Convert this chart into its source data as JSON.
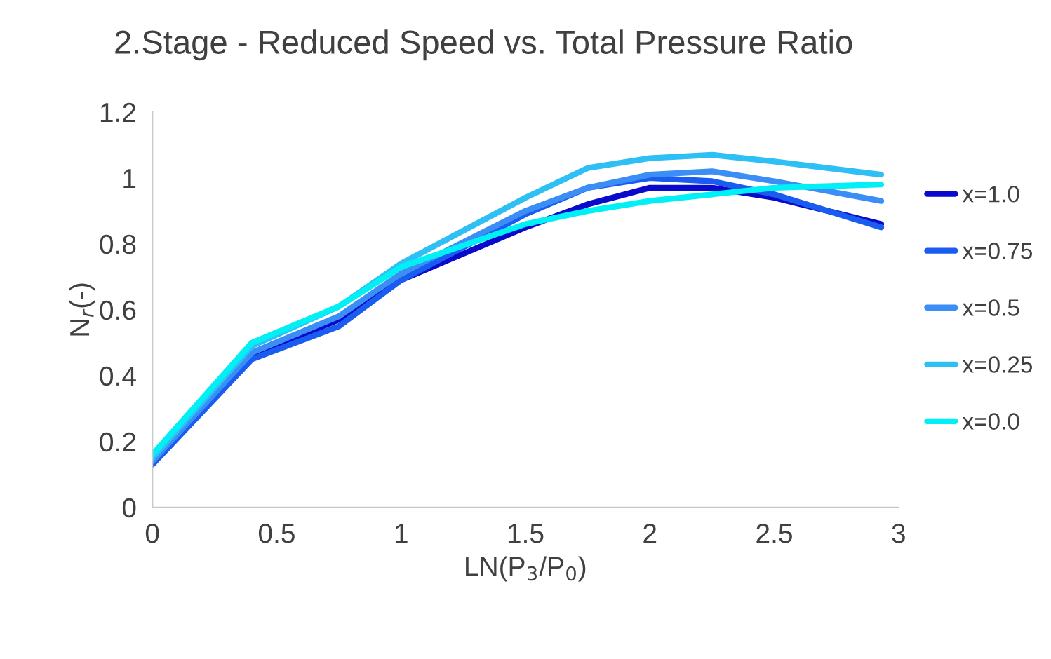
{
  "chart_data": {
    "type": "line",
    "title": "2.Stage - Reduced Speed vs. Total Pressure Ratio",
    "xlabel": "LN(P$_{3}$/P$_{0}$)",
    "ylabel": "N$_{r}$(-)",
    "x": [
      0,
      0.4,
      0.75,
      1,
      1.5,
      1.75,
      2,
      2.25,
      2.5,
      2.93
    ],
    "series": [
      {
        "name": "x=1.0",
        "color": "#0a0acc",
        "values": [
          0.14,
          0.46,
          0.57,
          0.69,
          0.85,
          0.92,
          0.97,
          0.97,
          0.94,
          0.86
        ]
      },
      {
        "name": "x=0.75",
        "color": "#1a5cf0",
        "values": [
          0.13,
          0.45,
          0.55,
          0.69,
          0.89,
          0.97,
          1.0,
          0.99,
          0.95,
          0.85
        ]
      },
      {
        "name": "x=0.5",
        "color": "#3a8ef5",
        "values": [
          0.14,
          0.47,
          0.58,
          0.71,
          0.9,
          0.97,
          1.01,
          1.02,
          0.99,
          0.93
        ]
      },
      {
        "name": "x=0.25",
        "color": "#2ec0f5",
        "values": [
          0.15,
          0.49,
          0.61,
          0.74,
          0.94,
          1.03,
          1.06,
          1.07,
          1.05,
          1.01
        ]
      },
      {
        "name": "x=0.0",
        "color": "#00f0f5",
        "values": [
          0.16,
          0.5,
          0.61,
          0.73,
          0.86,
          0.9,
          0.93,
          0.95,
          0.97,
          0.98
        ]
      }
    ],
    "xlim": [
      0,
      3
    ],
    "xticks": [
      0,
      0.5,
      1,
      1.5,
      2,
      2.5,
      3
    ],
    "ylim": [
      0,
      1.2
    ],
    "yticks": [
      0,
      0.2,
      0.4,
      0.6,
      0.8,
      1,
      1.2
    ],
    "grid": false,
    "legend": "right",
    "marker": "none",
    "line_style": "solid"
  }
}
